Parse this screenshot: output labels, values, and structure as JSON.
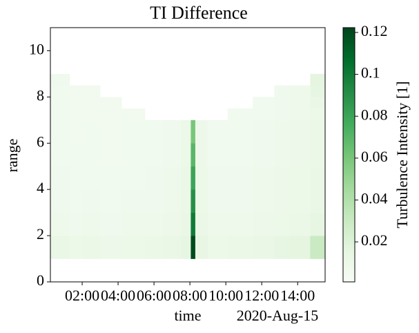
{
  "chart_data": {
    "type": "heatmap",
    "title": "TI Difference",
    "x_label": "time",
    "y_label": "range",
    "x_offset_label": "2020-Aug-15",
    "colorbar_label": "Turbulence Intensity [1]",
    "x_edges": [
      0.23,
      1.3,
      2,
      3,
      4.2,
      5.5,
      6.5,
      7.5,
      8.05,
      8.3,
      9,
      10.1,
      11.5,
      12.7,
      13.5,
      14.7,
      15.53
    ],
    "y_edges": [
      1,
      2,
      3,
      4,
      5,
      6,
      7,
      7.5,
      8,
      8.5,
      9
    ],
    "z": [
      [
        0.012,
        0.01,
        0.011,
        0.009,
        0.01,
        0.011,
        0.012,
        0.014,
        0.12,
        0.013,
        0.01,
        0.011,
        0.012,
        0.014,
        0.016,
        0.03
      ],
      [
        0.008,
        0.007,
        0.008,
        0.007,
        0.008,
        0.008,
        0.009,
        0.012,
        0.1,
        0.011,
        0.008,
        0.008,
        0.009,
        0.01,
        0.011,
        0.014
      ],
      [
        0.007,
        0.006,
        0.007,
        0.006,
        0.007,
        0.007,
        0.008,
        0.011,
        0.09,
        0.01,
        0.007,
        0.007,
        0.008,
        0.009,
        0.01,
        0.012
      ],
      [
        0.007,
        0.006,
        0.006,
        0.006,
        0.006,
        0.007,
        0.008,
        0.011,
        0.08,
        0.01,
        0.007,
        0.007,
        0.008,
        0.009,
        0.01,
        0.012
      ],
      [
        0.006,
        0.006,
        0.006,
        0.005,
        0.006,
        0.006,
        0.007,
        0.01,
        0.07,
        0.009,
        0.006,
        0.006,
        0.007,
        0.008,
        0.009,
        0.011
      ],
      [
        0.006,
        0.005,
        0.006,
        0.005,
        0.006,
        0.006,
        0.007,
        0.01,
        0.06,
        0.009,
        0.006,
        0.006,
        0.007,
        0.008,
        0.009,
        0.011
      ],
      [
        0.006,
        0.005,
        0.005,
        0.005,
        0.005,
        null,
        null,
        null,
        null,
        null,
        null,
        0.006,
        0.006,
        0.007,
        0.008,
        0.01
      ],
      [
        0.006,
        0.005,
        0.005,
        0.005,
        null,
        null,
        null,
        null,
        null,
        null,
        null,
        null,
        0.006,
        0.007,
        0.008,
        0.012
      ],
      [
        0.006,
        0.005,
        0.005,
        null,
        null,
        null,
        null,
        null,
        null,
        null,
        null,
        null,
        null,
        0.007,
        0.008,
        0.014
      ],
      [
        0.007,
        null,
        null,
        null,
        null,
        null,
        null,
        null,
        null,
        null,
        null,
        null,
        null,
        null,
        null,
        0.016
      ]
    ],
    "xlim": [
      0.23,
      15.53
    ],
    "ylim": [
      0,
      11
    ],
    "xticks": [
      {
        "value": 2,
        "label": "02:00"
      },
      {
        "value": 4,
        "label": "04:00"
      },
      {
        "value": 6,
        "label": "06:00"
      },
      {
        "value": 8,
        "label": "08:00"
      },
      {
        "value": 10,
        "label": "10:00"
      },
      {
        "value": 12,
        "label": "12:00"
      },
      {
        "value": 14,
        "label": "14:00"
      }
    ],
    "yticks": [
      0,
      2,
      4,
      6,
      8,
      10
    ],
    "clim": [
      0.0009,
      0.1223
    ],
    "cticks": [
      0.02,
      0.04,
      0.06,
      0.08,
      0.1,
      0.12
    ],
    "colorscale": [
      "#f7fcf5",
      "#e5f5e0",
      "#c7e9c0",
      "#a1d99b",
      "#74c476",
      "#41ab5d",
      "#238b45",
      "#006d2c",
      "#00441b"
    ]
  }
}
